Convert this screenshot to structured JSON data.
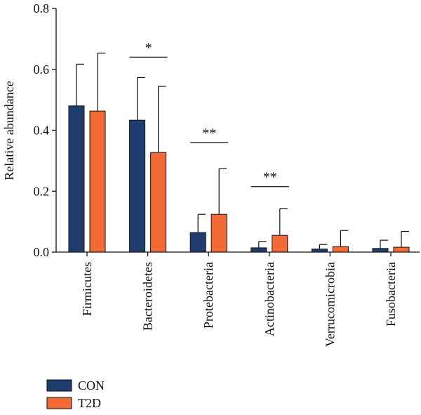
{
  "chart_data": {
    "type": "bar",
    "ylabel": "Relative abundance",
    "ylim": [
      0,
      0.8
    ],
    "yticks": [
      "0.0",
      "0.2",
      "0.4",
      "0.6",
      "0.8"
    ],
    "ytick_values": [
      0,
      0.2,
      0.4,
      0.6,
      0.8
    ],
    "categories": [
      "Firmicutes",
      "Bacteroidetes",
      "Protebacteria",
      "Actinobacteria",
      "Verrucomicrobia",
      "Fusobacteria"
    ],
    "series": [
      {
        "name": "CON",
        "color": "#1f3d6e",
        "values": [
          0.48,
          0.433,
          0.064,
          0.014,
          0.01,
          0.012
        ],
        "errors": [
          0.137,
          0.14,
          0.06,
          0.021,
          0.015,
          0.027
        ]
      },
      {
        "name": "T2D",
        "color": "#f26a35",
        "values": [
          0.463,
          0.327,
          0.124,
          0.055,
          0.018,
          0.016
        ],
        "errors": [
          0.19,
          0.217,
          0.15,
          0.088,
          0.053,
          0.052
        ]
      }
    ],
    "significance": [
      {
        "category_index": 1,
        "label": "*",
        "y": 0.64
      },
      {
        "category_index": 2,
        "label": "**",
        "y": 0.36
      },
      {
        "category_index": 3,
        "label": "**",
        "y": 0.215
      }
    ],
    "legend_position": "bottom-left",
    "grid": false
  }
}
